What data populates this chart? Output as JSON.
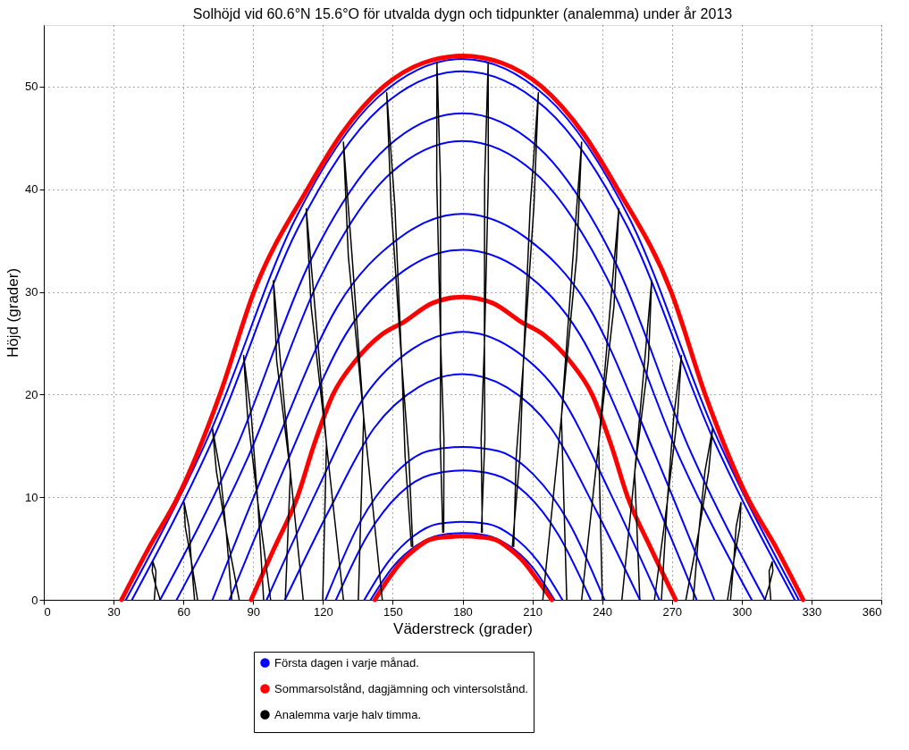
{
  "chart_data": {
    "type": "line",
    "title": "Solhöjd vid 60.6°N 15.6°O för utvalda dygn och tidpunkter (analemma) under år 2013",
    "xlabel": "Väderstreck (grader)",
    "ylabel": "Höjd (grader)",
    "xlim": [
      0,
      360
    ],
    "xticks": [
      0,
      30,
      60,
      90,
      120,
      150,
      180,
      210,
      240,
      270,
      300,
      330,
      360
    ],
    "ylim": [
      0,
      56
    ],
    "yticks": [
      0,
      10,
      20,
      30,
      40,
      50
    ],
    "grid": true,
    "legend": "bottom",
    "line_style": "solid",
    "series": [
      {
        "name": "Första dagen i varje månad.",
        "color": "#0000ff",
        "x": [
          35.3,
          71.5,
          107.7,
          143.8,
          180,
          216.1,
          252.3,
          288.4,
          324.5,
          null,
          37.9,
          73.4,
          109.0,
          144.5,
          180,
          215.7,
          251.4,
          287.1,
          322.8,
          null,
          50,
          82.5,
          115,
          147.5,
          180,
          212.5,
          245,
          277.5,
          310,
          null,
          57.1,
          87.8,
          118.6,
          149.3,
          180,
          211.1,
          242.2,
          273.2,
          304.3,
          null,
          72.5,
          99.4,
          126.3,
          153.1,
          180,
          207.1,
          234.1,
          261.2,
          288.2,
          null,
          79.8,
          104.9,
          129.9,
          155.0,
          180,
          205.2,
          230.3,
          255.5,
          280.6,
          null,
          95.8,
          116.9,
          137.9,
          158.9,
          180,
          201.2,
          222.3,
          243.5,
          264.6,
          null,
          103.7,
          122.8,
          141.9,
          160.9,
          180,
          199.1,
          218.1,
          237.2,
          256.2,
          null,
          121.1,
          135.8,
          150.6,
          165.3,
          180,
          195.3,
          210.5,
          225.8,
          241,
          null,
          125.6,
          139.2,
          152.8,
          166.4,
          180,
          193.8,
          207.6,
          221.3,
          235.1,
          null,
          137.8,
          148.4,
          158.9,
          169.5,
          180,
          190.7,
          201.5,
          212.2,
          222.9,
          null,
          140.5,
          150.4,
          160.3,
          170.1,
          180,
          189.9,
          199.8,
          209.6,
          219.5
        ],
        "values": [
          0,
          16.3,
          36.9,
          49.0,
          52.7,
          49.0,
          36.9,
          16.3,
          0,
          null,
          0,
          16.0,
          36.1,
          47.9,
          51.5,
          47.9,
          36.1,
          16.0,
          0,
          null,
          0,
          14.7,
          33.2,
          44.1,
          47.4,
          44.1,
          33.2,
          14.7,
          0,
          null,
          0,
          13.9,
          31.3,
          41.6,
          44.7,
          41.6,
          31.3,
          13.9,
          0,
          null,
          0,
          15.0,
          28.6,
          35.3,
          37.6,
          35.3,
          28.6,
          15.0,
          0,
          null,
          0,
          13.6,
          25.9,
          32.1,
          34.1,
          32.1,
          25.9,
          13.6,
          0,
          null,
          0,
          10.4,
          19.8,
          24.5,
          26.1,
          24.5,
          19.8,
          10.4,
          0,
          null,
          0,
          8.8,
          16.7,
          20.7,
          22.0,
          20.7,
          16.7,
          8.8,
          0,
          null,
          0,
          7.5,
          12.2,
          14.5,
          14.9,
          14.5,
          12.2,
          7.5,
          0,
          null,
          0,
          6.3,
          10.3,
          12.2,
          12.6,
          12.2,
          10.3,
          6.3,
          0,
          null,
          0,
          3.8,
          6.2,
          7.4,
          7.6,
          7.4,
          6.2,
          3.8,
          0,
          null,
          0,
          3.3,
          5.3,
          6.3,
          6.5,
          6.3,
          5.3,
          3.3,
          0
        ]
      },
      {
        "name": "Sommarsolstånd, dagjämning och vintersolstånd.",
        "color": "#ff0000",
        "x": [
          33.4,
          45,
          57.6,
          75.7,
          90.3,
          113.3,
          128,
          146,
          163,
          180,
          197,
          214,
          232,
          246.7,
          269.7,
          284.3,
          302.4,
          315,
          326.4,
          null,
          89.1,
          99,
          109,
          116,
          124.3,
          134,
          145,
          155,
          167,
          180,
          193,
          205,
          215,
          226,
          235.7,
          244,
          251,
          261,
          271.6,
          null,
          142.3,
          148,
          153.7,
          160,
          165.3,
          172,
          180,
          188,
          194.7,
          200,
          206.3,
          212,
          218.4
        ],
        "values": [
          0,
          5,
          10,
          20,
          30,
          40,
          45.4,
          50,
          52.3,
          53,
          52.3,
          50,
          45.4,
          40,
          30,
          20,
          10,
          5,
          0,
          null,
          0,
          5,
          10,
          15,
          20,
          23.3,
          25.8,
          27.1,
          28.9,
          29.5,
          28.9,
          27.1,
          25.8,
          23.3,
          20,
          15,
          10,
          5,
          0,
          null,
          0,
          2,
          3.7,
          5,
          5.8,
          6.1,
          6.2,
          6.1,
          5.8,
          5,
          3.7,
          2,
          0
        ]
      },
      {
        "name": "Analemma varje halv timma.",
        "color": "#000000",
        "x": [
          47.5,
          48.0,
          46.6,
          46.9,
          48.2,
          48.0,
          50.0,
          null,
          64.8,
          63.4,
          60.8,
          60.3,
          62.4,
          63.4,
          66.1,
          null,
          80.8,
          78.4,
          74.2,
          72.5,
          75.8,
          78.4,
          84.0,
          null,
          94.5,
          92.0,
          87.6,
          85.9,
          89.2,
          92.0,
          97.5,
          null,
          103.8,
          106.0,
          100.1,
          98.7,
          101.7,
          106.0,
          111.5,
          null,
          119.9,
          121.5,
          114.9,
          112.8,
          116.5,
          121.5,
          128.8,
          null,
          135.2,
          137.5,
          130.9,
          128.8,
          132.5,
          137.5,
          145.5,
          null,
          158.0,
          155.3,
          153.9,
          149.3,
          147.4,
          150.9,
          153.9,
          156.9,
          158.6,
          null,
          171.5,
          170.4,
          170.6,
          168.9,
          169.0,
          170.5,
          170.6,
          172.0,
          171.9,
          null,
          188.1,
          189.6,
          189.4,
          191.1,
          191.0,
          189.5,
          189.4,
          188.0,
          188.5,
          null,
          201.4,
          204.7,
          206.1,
          210.7,
          212.6,
          209.1,
          206.1,
          203.1,
          202.0,
          null,
          224.8,
          222.5,
          229.1,
          231.2,
          227.5,
          222.5,
          214.5,
          null,
          240.1,
          238.5,
          245.1,
          247.2,
          243.5,
          238.5,
          231.2,
          null,
          256.2,
          254.0,
          259.9,
          261.3,
          258.3,
          254.0,
          248.5,
          null,
          265.5,
          268.0,
          272.4,
          274.1,
          270.8,
          268.0,
          262.5,
          null,
          279.2,
          281.6,
          285.8,
          287.5,
          284.2,
          281.6,
          276.0,
          null,
          295.2,
          296.6,
          299.2,
          299.7,
          297.6,
          296.6,
          293.9,
          null,
          312.5,
          312.0,
          313.4,
          313.1,
          311.8,
          312.0,
          310.0
        ],
        "values": [
          0,
          1.5,
          2.8,
          3.7,
          2.8,
          1.5,
          0,
          null,
          0,
          3.8,
          7.1,
          9.5,
          7.1,
          3.8,
          0,
          null,
          0,
          6.7,
          12.5,
          16.7,
          12.5,
          6.7,
          0,
          null,
          0,
          9.5,
          17.9,
          23.8,
          17.9,
          9.5,
          0,
          null,
          0,
          12.4,
          23.3,
          31.1,
          23.3,
          12.4,
          0,
          null,
          0,
          15.2,
          28.6,
          38.1,
          28.6,
          15.2,
          0,
          null,
          0,
          17.8,
          33.5,
          44.6,
          33.5,
          17.8,
          0,
          null,
          5.2,
          14.0,
          22.9,
          38.4,
          49.4,
          38.4,
          22.9,
          14.0,
          5.2,
          null,
          6.6,
          15.7,
          24.9,
          40.9,
          52.3,
          40.9,
          24.9,
          15.7,
          6.6,
          null,
          6.6,
          15.7,
          24.9,
          40.9,
          52.3,
          40.9,
          24.9,
          15.7,
          6.6,
          null,
          5.2,
          14.0,
          22.9,
          38.4,
          49.4,
          38.4,
          22.9,
          14.0,
          5.2,
          null,
          0,
          17.8,
          33.5,
          44.6,
          33.5,
          17.8,
          0,
          null,
          0,
          15.2,
          28.6,
          38.1,
          28.6,
          15.2,
          0,
          null,
          0,
          12.4,
          23.3,
          31.1,
          23.3,
          12.4,
          0,
          null,
          0,
          9.5,
          17.9,
          23.8,
          17.9,
          9.5,
          0,
          null,
          0,
          6.7,
          12.5,
          16.7,
          12.5,
          6.7,
          0,
          null,
          0,
          3.8,
          7.1,
          9.5,
          7.1,
          3.8,
          0,
          null,
          0,
          1.5,
          2.8,
          3.7,
          2.8,
          1.5,
          0
        ]
      }
    ]
  }
}
